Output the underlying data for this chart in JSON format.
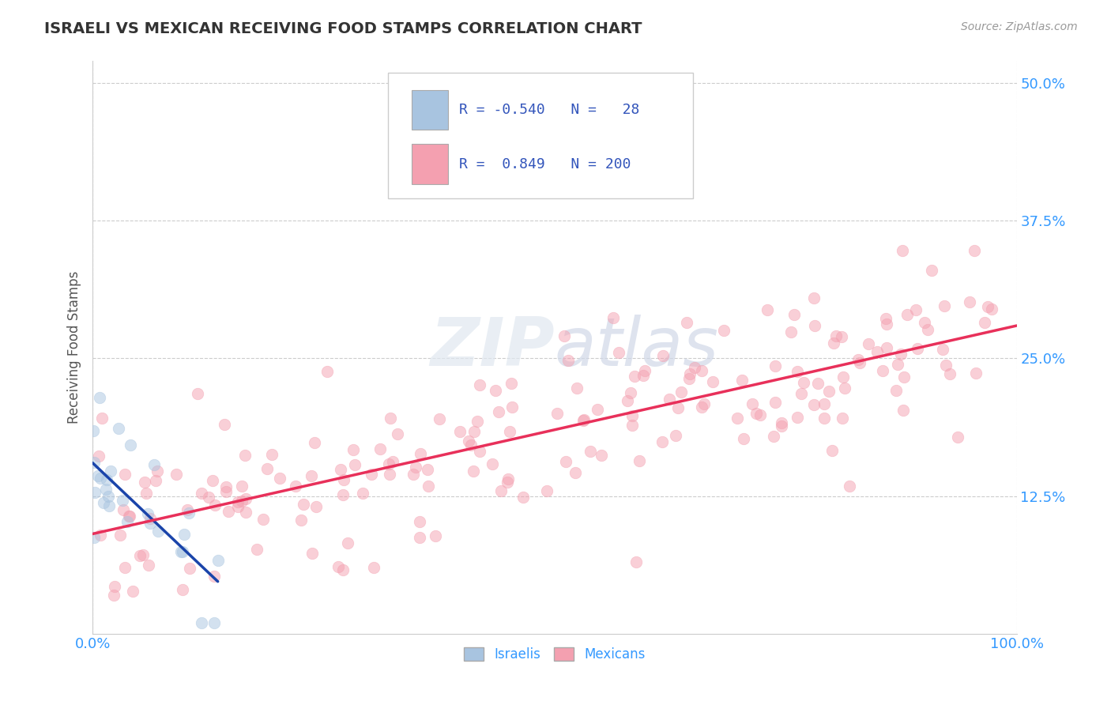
{
  "title": "ISRAELI VS MEXICAN RECEIVING FOOD STAMPS CORRELATION CHART",
  "source": "Source: ZipAtlas.com",
  "ylabel": "Receiving Food Stamps",
  "xlim": [
    0.0,
    1.0
  ],
  "ylim": [
    0.0,
    0.52
  ],
  "yticks": [
    0.125,
    0.25,
    0.375,
    0.5
  ],
  "ytick_labels": [
    "12.5%",
    "25.0%",
    "37.5%",
    "50.0%"
  ],
  "xticks": [
    0.0,
    1.0
  ],
  "xtick_labels": [
    "0.0%",
    "100.0%"
  ],
  "israeli_color": "#a8c4e0",
  "mexican_color": "#f4a0b0",
  "israeli_line_color": "#1a44aa",
  "mexican_line_color": "#e8305a",
  "R_israeli": -0.54,
  "N_israeli": 28,
  "R_mexican": 0.849,
  "N_mexican": 200,
  "legend_label_israeli": "Israelis",
  "legend_label_mexican": "Mexicans",
  "watermark_zip": "ZIP",
  "watermark_atlas": "atlas",
  "background_color": "#ffffff",
  "grid_color": "#cccccc",
  "title_color": "#333333",
  "axis_label_color": "#555555",
  "tick_label_color": "#3399ff",
  "dot_size": 110,
  "dot_alpha": 0.5,
  "dot_linewidth": 0.5
}
